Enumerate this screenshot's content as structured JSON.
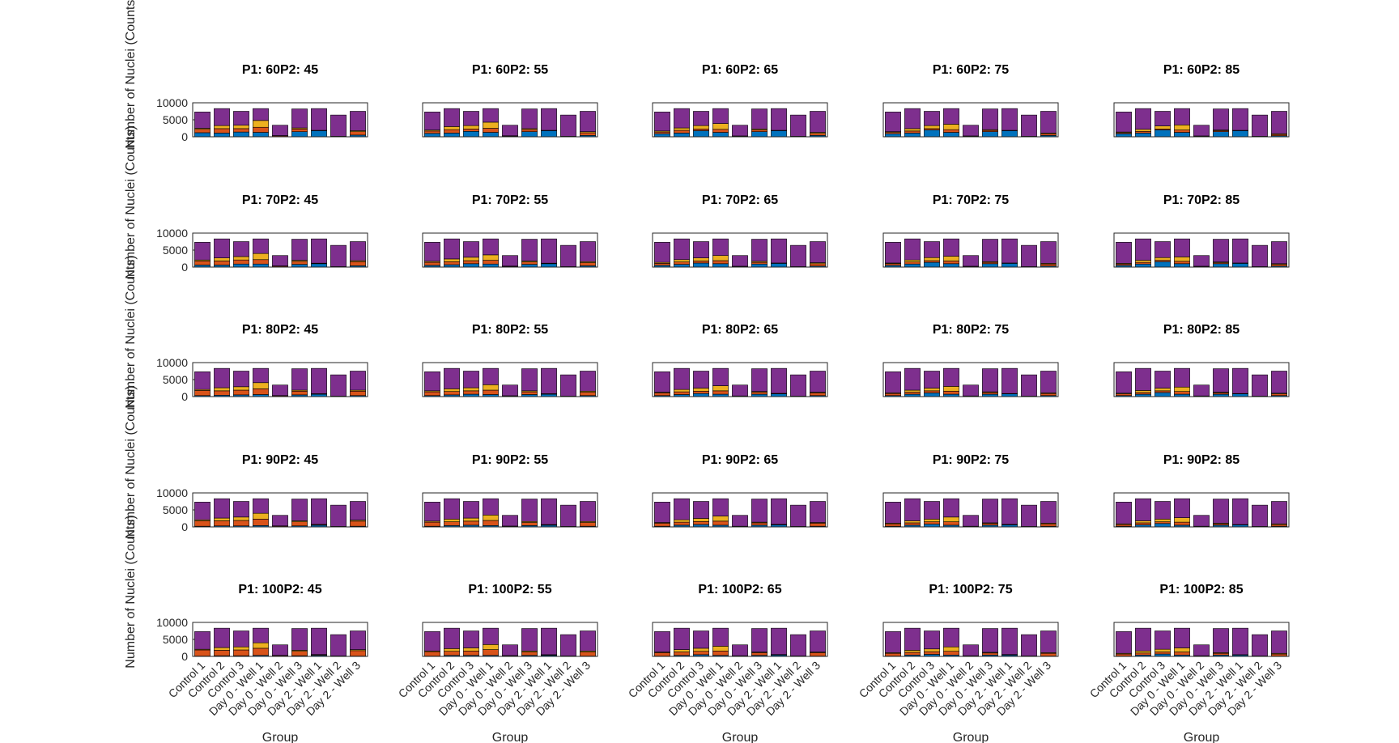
{
  "figure": {
    "ylabel": "Number of Nuclei (Counts)",
    "xlabel": "Group"
  },
  "chart_data": {
    "type": "bar",
    "stacked": true,
    "layout": "5 rows x 5 columns small multiples",
    "categories": [
      "Control 1",
      "Control 2",
      "Control 3",
      "Day 0 - Well 1",
      "Day 0 - Well 2",
      "Day 0 - Well 3",
      "Day 2 - Well 1",
      "Day 2 - Well 2",
      "Day 2 - Well 3"
    ],
    "ylim": [
      0,
      10000
    ],
    "yticks": [
      "0",
      "5000",
      "10000"
    ],
    "totals": [
      7300,
      8300,
      7500,
      8300,
      3400,
      8200,
      8300,
      6400,
      7500
    ],
    "series_colors": [
      "#0072BD",
      "#D95319",
      "#EDB120",
      "#7E2F8E"
    ],
    "panels": [
      {
        "title": "P1: 60P2: 45",
        "blue": [
          1200,
          1100,
          1400,
          1300,
          100,
          1500,
          1800,
          50,
          500
        ],
        "orange": [
          1000,
          1300,
          1000,
          1500,
          200,
          800,
          50,
          50,
          1000
        ],
        "yellow": [
          300,
          900,
          1000,
          2000,
          50,
          300,
          50,
          50,
          300
        ]
      },
      {
        "title": "P1: 60P2: 55",
        "blue": [
          1000,
          1100,
          1600,
          1300,
          100,
          1500,
          1800,
          50,
          400
        ],
        "orange": [
          700,
          1000,
          700,
          1200,
          150,
          600,
          50,
          50,
          800
        ],
        "yellow": [
          300,
          900,
          1000,
          1800,
          50,
          300,
          50,
          50,
          300
        ]
      },
      {
        "title": "P1: 60P2: 65",
        "blue": [
          900,
          1100,
          1800,
          1300,
          100,
          1500,
          1800,
          50,
          400
        ],
        "orange": [
          500,
          800,
          500,
          900,
          100,
          500,
          50,
          50,
          600
        ],
        "yellow": [
          300,
          700,
          1000,
          1700,
          50,
          300,
          50,
          50,
          300
        ]
      },
      {
        "title": "P1: 60P2: 75",
        "blue": [
          900,
          1100,
          2000,
          1300,
          100,
          1500,
          1800,
          50,
          400
        ],
        "orange": [
          400,
          600,
          400,
          800,
          100,
          400,
          50,
          50,
          500
        ],
        "yellow": [
          200,
          700,
          900,
          1600,
          50,
          200,
          50,
          50,
          200
        ]
      },
      {
        "title": "P1: 60P2: 85",
        "blue": [
          900,
          1100,
          2000,
          1300,
          100,
          1500,
          1800,
          50,
          300
        ],
        "orange": [
          300,
          500,
          300,
          700,
          100,
          300,
          50,
          50,
          400
        ],
        "yellow": [
          200,
          600,
          900,
          1500,
          50,
          200,
          50,
          50,
          200
        ]
      },
      {
        "title": "P1: 70P2: 45",
        "blue": [
          600,
          600,
          900,
          900,
          100,
          800,
          1000,
          50,
          400
        ],
        "orange": [
          1200,
          1200,
          1200,
          1300,
          200,
          900,
          100,
          50,
          1200
        ],
        "yellow": [
          300,
          900,
          1000,
          1800,
          50,
          300,
          50,
          50,
          300
        ]
      },
      {
        "title": "P1: 70P2: 55",
        "blue": [
          500,
          700,
          1000,
          900,
          100,
          800,
          1000,
          50,
          400
        ],
        "orange": [
          900,
          900,
          900,
          1100,
          150,
          700,
          100,
          50,
          900
        ],
        "yellow": [
          300,
          800,
          1000,
          1600,
          50,
          300,
          50,
          50,
          300
        ]
      },
      {
        "title": "P1: 70P2: 65",
        "blue": [
          500,
          800,
          1200,
          1000,
          100,
          900,
          1100,
          50,
          300
        ],
        "orange": [
          600,
          700,
          600,
          900,
          100,
          500,
          50,
          50,
          700
        ],
        "yellow": [
          300,
          700,
          900,
          1500,
          50,
          300,
          50,
          50,
          300
        ]
      },
      {
        "title": "P1: 70P2: 75",
        "blue": [
          500,
          900,
          1400,
          1000,
          100,
          1000,
          1100,
          50,
          300
        ],
        "orange": [
          500,
          600,
          500,
          800,
          100,
          400,
          50,
          50,
          600
        ],
        "yellow": [
          200,
          600,
          900,
          1400,
          50,
          200,
          50,
          50,
          200
        ]
      },
      {
        "title": "P1: 70P2: 85",
        "blue": [
          500,
          900,
          1600,
          1000,
          100,
          1000,
          1100,
          50,
          300
        ],
        "orange": [
          400,
          500,
          400,
          700,
          100,
          300,
          50,
          50,
          500
        ],
        "yellow": [
          200,
          600,
          800,
          1300,
          50,
          200,
          50,
          50,
          200
        ]
      },
      {
        "title": "P1: 80P2: 45",
        "blue": [
          300,
          400,
          500,
          600,
          50,
          500,
          700,
          50,
          300
        ],
        "orange": [
          1500,
          1300,
          1400,
          1700,
          200,
          1100,
          100,
          50,
          1300
        ],
        "yellow": [
          300,
          900,
          1000,
          1800,
          50,
          300,
          50,
          50,
          300
        ]
      },
      {
        "title": "P1: 80P2: 55",
        "blue": [
          300,
          500,
          700,
          600,
          50,
          600,
          700,
          50,
          300
        ],
        "orange": [
          1100,
          1000,
          1000,
          1300,
          150,
          800,
          100,
          50,
          1000
        ],
        "yellow": [
          300,
          800,
          900,
          1600,
          50,
          300,
          50,
          50,
          300
        ]
      },
      {
        "title": "P1: 80P2: 65",
        "blue": [
          300,
          600,
          900,
          700,
          50,
          700,
          800,
          50,
          300
        ],
        "orange": [
          800,
          800,
          700,
          1000,
          100,
          600,
          100,
          50,
          800
        ],
        "yellow": [
          200,
          700,
          900,
          1500,
          50,
          200,
          50,
          50,
          200
        ]
      },
      {
        "title": "P1: 80P2: 75",
        "blue": [
          300,
          700,
          1100,
          700,
          50,
          700,
          800,
          50,
          300
        ],
        "orange": [
          600,
          600,
          600,
          900,
          100,
          500,
          50,
          50,
          600
        ],
        "yellow": [
          200,
          600,
          800,
          1400,
          50,
          200,
          50,
          50,
          200
        ]
      },
      {
        "title": "P1: 80P2: 85",
        "blue": [
          300,
          700,
          1200,
          700,
          50,
          700,
          800,
          50,
          300
        ],
        "orange": [
          500,
          500,
          500,
          800,
          100,
          400,
          50,
          50,
          500
        ],
        "yellow": [
          200,
          600,
          800,
          1300,
          50,
          200,
          50,
          50,
          200
        ]
      },
      {
        "title": "P1: 90P2: 45",
        "blue": [
          200,
          300,
          300,
          400,
          50,
          300,
          500,
          50,
          200
        ],
        "orange": [
          1600,
          1500,
          1600,
          1900,
          200,
          1200,
          200,
          50,
          1500
        ],
        "yellow": [
          300,
          800,
          1000,
          1700,
          50,
          300,
          50,
          50,
          300
        ]
      },
      {
        "title": "P1: 90P2: 55",
        "blue": [
          200,
          400,
          500,
          400,
          50,
          400,
          500,
          50,
          200
        ],
        "orange": [
          1200,
          1100,
          1200,
          1500,
          150,
          900,
          150,
          50,
          1100
        ],
        "yellow": [
          300,
          800,
          900,
          1600,
          50,
          300,
          50,
          50,
          300
        ]
      },
      {
        "title": "P1: 90P2: 65",
        "blue": [
          200,
          500,
          700,
          500,
          50,
          500,
          600,
          50,
          200
        ],
        "orange": [
          900,
          900,
          900,
          1200,
          100,
          700,
          100,
          50,
          900
        ],
        "yellow": [
          200,
          700,
          900,
          1500,
          50,
          200,
          50,
          50,
          200
        ]
      },
      {
        "title": "P1: 90P2: 75",
        "blue": [
          200,
          500,
          800,
          500,
          50,
          500,
          600,
          50,
          200
        ],
        "orange": [
          700,
          700,
          700,
          1000,
          100,
          500,
          100,
          50,
          700
        ],
        "yellow": [
          200,
          600,
          800,
          1400,
          50,
          200,
          50,
          50,
          200
        ]
      },
      {
        "title": "P1: 90P2: 85",
        "blue": [
          200,
          600,
          1000,
          500,
          50,
          500,
          600,
          50,
          200
        ],
        "orange": [
          500,
          600,
          500,
          900,
          100,
          400,
          50,
          50,
          500
        ],
        "yellow": [
          200,
          600,
          800,
          1300,
          50,
          200,
          50,
          50,
          200
        ]
      },
      {
        "title": "P1: 100P2: 45",
        "blue": [
          100,
          200,
          200,
          300,
          50,
          200,
          300,
          50,
          100
        ],
        "orange": [
          1800,
          1600,
          1700,
          2100,
          200,
          1300,
          200,
          50,
          1600
        ],
        "yellow": [
          200,
          800,
          900,
          1600,
          50,
          300,
          50,
          50,
          300
        ]
      },
      {
        "title": "P1: 100P2: 55",
        "blue": [
          100,
          300,
          300,
          300,
          50,
          300,
          300,
          50,
          100
        ],
        "orange": [
          1300,
          1200,
          1300,
          1700,
          150,
          1000,
          150,
          50,
          1200
        ],
        "yellow": [
          200,
          800,
          900,
          1500,
          50,
          300,
          50,
          50,
          300
        ]
      },
      {
        "title": "P1: 100P2: 65",
        "blue": [
          100,
          300,
          500,
          300,
          50,
          300,
          400,
          50,
          100
        ],
        "orange": [
          1000,
          1000,
          1000,
          1300,
          100,
          800,
          100,
          50,
          1000
        ],
        "yellow": [
          200,
          700,
          900,
          1400,
          50,
          200,
          50,
          50,
          200
        ]
      },
      {
        "title": "P1: 100P2: 75",
        "blue": [
          100,
          400,
          600,
          400,
          50,
          400,
          400,
          50,
          100
        ],
        "orange": [
          800,
          800,
          800,
          1100,
          100,
          600,
          100,
          50,
          800
        ],
        "yellow": [
          200,
          600,
          800,
          1300,
          50,
          200,
          50,
          50,
          200
        ]
      },
      {
        "title": "P1: 100P2: 85",
        "blue": [
          100,
          400,
          700,
          400,
          50,
          400,
          400,
          50,
          100
        ],
        "orange": [
          600,
          600,
          600,
          900,
          100,
          500,
          50,
          50,
          600
        ],
        "yellow": [
          200,
          600,
          800,
          1200,
          50,
          200,
          50,
          50,
          200
        ]
      }
    ]
  }
}
